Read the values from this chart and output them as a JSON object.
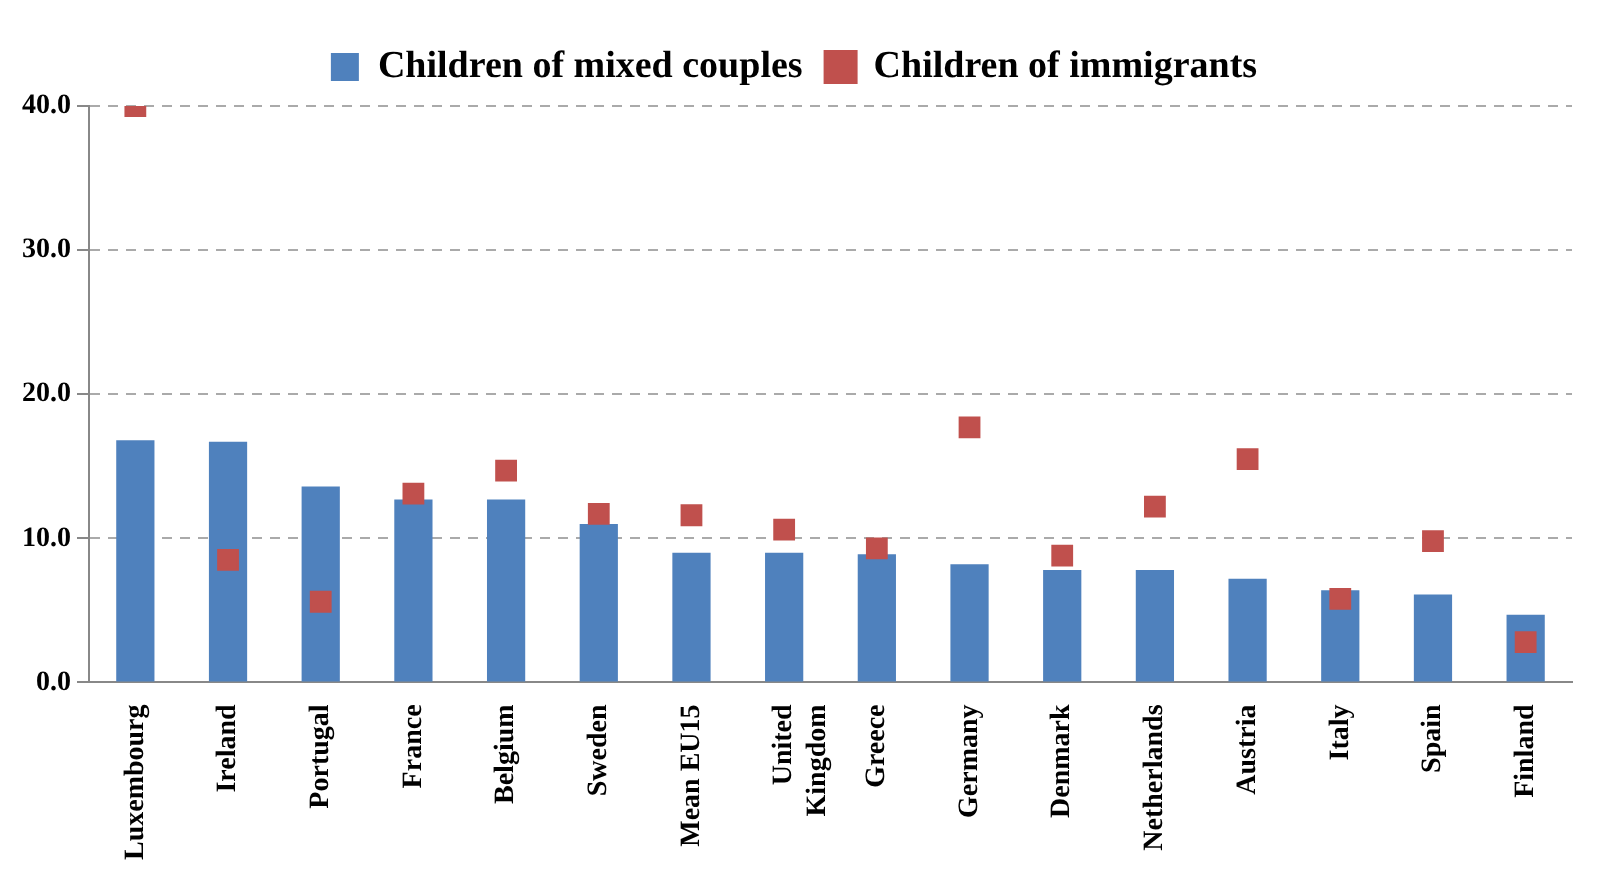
{
  "chart_data": {
    "type": "bar",
    "categories": [
      "Luxembourg",
      "Ireland",
      "Portugal",
      "France",
      "Belgium",
      "Sweden",
      "Mean EU15",
      "United Kingdom",
      "Greece",
      "Germany",
      "Denmark",
      "Netherlands",
      "Austria",
      "Italy",
      "Spain",
      "Finland"
    ],
    "series": [
      {
        "name": "Children of mixed couples",
        "color": "#4f81bd",
        "values": [
          16.8,
          16.7,
          13.6,
          12.7,
          12.7,
          11.0,
          9.0,
          9.0,
          8.9,
          8.2,
          7.8,
          7.8,
          7.2,
          6.4,
          6.1,
          4.7
        ]
      },
      {
        "name": "Children of immigrants",
        "type": "scatter",
        "color": "#c0504d",
        "values": [
          40.0,
          8.5,
          5.6,
          13.1,
          14.7,
          11.7,
          11.6,
          10.6,
          9.3,
          17.7,
          8.8,
          12.2,
          15.5,
          5.8,
          9.8,
          2.8
        ]
      }
    ],
    "ylim": [
      0,
      40
    ],
    "yticks": [
      {
        "value": 0,
        "label": "0.0"
      },
      {
        "value": 10,
        "label": "10.0"
      },
      {
        "value": 20,
        "label": "20.0"
      },
      {
        "value": 30,
        "label": "30.0"
      },
      {
        "value": 40,
        "label": "40.0"
      }
    ],
    "grid": "y",
    "legend": "top",
    "marker": "square"
  }
}
